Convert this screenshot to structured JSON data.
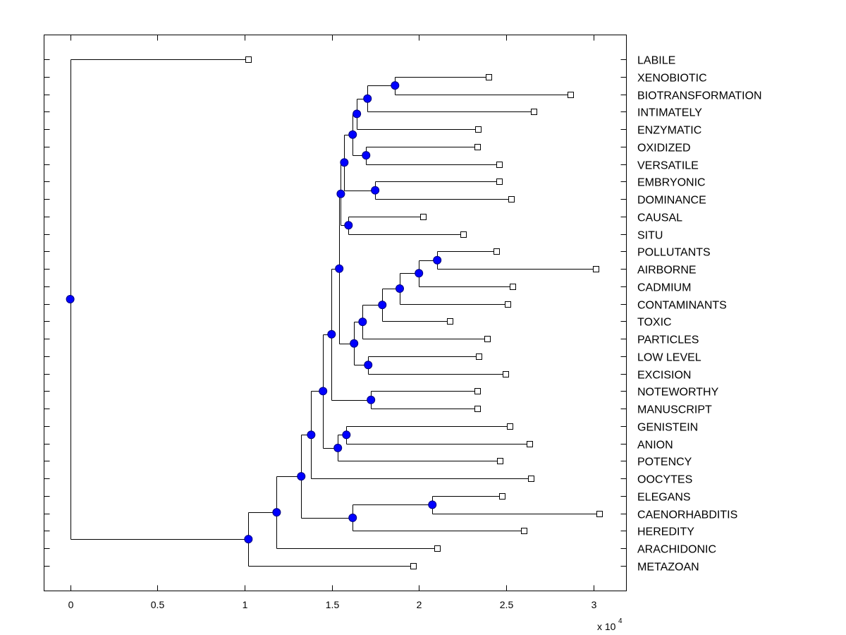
{
  "chart_data": {
    "type": "dendrogram",
    "title": "",
    "xlabel": "",
    "x_scale_label": "x 10",
    "x_scale_exponent": "4",
    "xlim": [
      -0.15,
      3.19
    ],
    "xticks": [
      "0",
      "0.5",
      "1",
      "1.5",
      "2",
      "2.5",
      "3"
    ],
    "xtick_values": [
      0,
      0.5,
      1,
      1.5,
      2,
      2.5,
      3
    ],
    "colors": {
      "node": "#0000ff",
      "node_edge": "#00007f",
      "line": "#000000",
      "leaf": "#ffffff"
    },
    "tree": {
      "h": 0,
      "children": [
        {
          "label": "LABILE",
          "h": 1.022
        },
        {
          "h": 1.022,
          "children": [
            {
              "h": 1.184,
              "children": [
                {
                  "h": 1.325,
                  "children": [
                    {
                      "h": 1.382,
                      "children": [
                        {
                          "h": 1.45,
                          "children": [
                            {
                              "h": 1.499,
                              "children": [
                                {
                                  "h": 1.543,
                                  "children": [
                                    {
                                      "h": 1.552,
                                      "children": [
                                        {
                                          "h": 1.572,
                                          "children": [
                                            {
                                              "h": 1.62,
                                              "children": [
                                                {
                                                  "h": 1.644,
                                                  "children": [
                                                    {
                                                      "h": 1.705,
                                                      "children": [
                                                        {
                                                          "h": 1.863,
                                                          "children": [
                                                            {
                                                              "label": "XENOBIOTIC",
                                                              "h": 2.4
                                                            },
                                                            {
                                                              "label": "BIOTRANSFORMATION",
                                                              "h": 2.87
                                                            }
                                                          ]
                                                        },
                                                        {
                                                          "label": "INTIMATELY",
                                                          "h": 2.66
                                                        }
                                                      ]
                                                    },
                                                    {
                                                      "label": "ENZYMATIC",
                                                      "h": 2.34
                                                    }
                                                  ]
                                                },
                                                {
                                                  "h": 1.697,
                                                  "children": [
                                                    {
                                                      "label": "OXIDIZED",
                                                      "h": 2.335
                                                    },
                                                    {
                                                      "label": "VERSATILE",
                                                      "h": 2.46
                                                    }
                                                  ]
                                                }
                                              ]
                                            },
                                            {
                                              "h": 1.749,
                                              "children": [
                                                {
                                                  "label": "EMBRYONIC",
                                                  "h": 2.46
                                                },
                                                {
                                                  "label": "DOMINANCE",
                                                  "h": 2.53
                                                }
                                              ]
                                            }
                                          ]
                                        },
                                        {
                                          "h": 1.596,
                                          "children": [
                                            {
                                              "label": "CAUSAL",
                                              "h": 2.024
                                            },
                                            {
                                              "label": "SITU",
                                              "h": 2.255
                                            }
                                          ]
                                        }
                                      ]
                                    },
                                    {
                                      "h": 1.628,
                                      "children": [
                                        {
                                          "h": 1.677,
                                          "children": [
                                            {
                                              "h": 1.79,
                                              "children": [
                                                {
                                                  "h": 1.89,
                                                  "children": [
                                                    {
                                                      "h": 2.0,
                                                      "children": [
                                                        {
                                                          "h": 2.105,
                                                          "children": [
                                                            {
                                                              "label": "POLLUTANTS",
                                                              "h": 2.444
                                                            },
                                                            {
                                                              "label": "AIRBORNE",
                                                              "h": 3.014
                                                            }
                                                          ]
                                                        },
                                                        {
                                                          "label": "CADMIUM",
                                                          "h": 2.537
                                                        }
                                                      ]
                                                    },
                                                    {
                                                      "label": "CONTAMINANTS",
                                                      "h": 2.509
                                                    }
                                                  ]
                                                },
                                                {
                                                  "label": "TOXIC",
                                                  "h": 2.178
                                                }
                                              ]
                                            },
                                            {
                                              "label": "PARTICLES",
                                              "h": 2.392
                                            }
                                          ]
                                        },
                                        {
                                          "h": 1.709,
                                          "children": [
                                            {
                                              "label": "LOW LEVEL",
                                              "h": 2.343
                                            },
                                            {
                                              "label": "EXCISION",
                                              "h": 2.497
                                            }
                                          ]
                                        }
                                      ]
                                    }
                                  ]
                                },
                                {
                                  "h": 1.725,
                                  "children": [
                                    {
                                      "label": "NOTEWORTHY",
                                      "h": 2.335
                                    },
                                    {
                                      "label": "MANUSCRIPT",
                                      "h": 2.335
                                    }
                                  ]
                                }
                              ]
                            },
                            {
                              "h": 1.535,
                              "children": [
                                {
                                  "h": 1.584,
                                  "children": [
                                    {
                                      "label": "GENISTEIN",
                                      "h": 2.521
                                    },
                                    {
                                      "label": "ANION",
                                      "h": 2.634
                                    }
                                  ]
                                },
                                {
                                  "label": "POTENCY",
                                  "h": 2.465
                                }
                              ]
                            }
                          ]
                        },
                        {
                          "label": "OOCYTES",
                          "h": 2.642
                        }
                      ]
                    },
                    {
                      "h": 1.62,
                      "children": [
                        {
                          "h": 2.077,
                          "children": [
                            {
                              "label": "ELEGANS",
                              "h": 2.477
                            },
                            {
                              "label": "CAENORHABDITIS",
                              "h": 3.034
                            }
                          ]
                        },
                        {
                          "label": "HEREDITY",
                          "h": 2.602
                        }
                      ]
                    }
                  ]
                },
                {
                  "label": "ARACHIDONIC",
                  "h": 2.105
                }
              ]
            },
            {
              "label": "METAZOAN",
              "h": 1.968
            }
          ]
        }
      ]
    }
  }
}
